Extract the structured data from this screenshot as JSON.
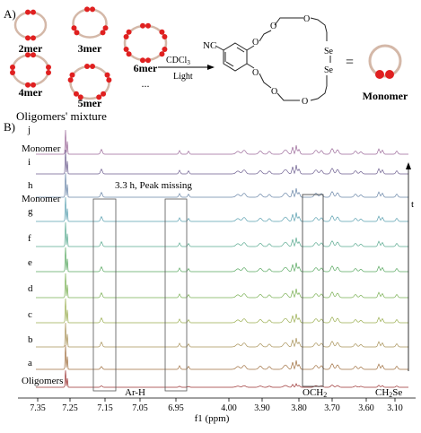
{
  "panel_a": {
    "label": "A)",
    "oligomers": [
      {
        "label": "2mer",
        "beads": 2
      },
      {
        "label": "3mer",
        "beads": 3
      },
      {
        "label": "6mer",
        "beads": 6
      },
      {
        "label": "4mer",
        "beads": 4
      },
      {
        "label": "5mer",
        "beads": 5
      },
      {
        "label": "...",
        "beads": 0
      }
    ],
    "mixture_label": "Oligomers' mixture",
    "arrow_top": "CDCl",
    "arrow_top_sub": "3",
    "arrow_bottom": "Light",
    "structure": {
      "nitrile": "NC",
      "oxygen": "O",
      "selenium": "Se"
    },
    "equals": "=",
    "monomer_label": "Monomer",
    "colors": {
      "ring": "#d4b8a8",
      "bead": "#e02020",
      "bond": "#222222"
    }
  },
  "panel_b": {
    "label": "B)",
    "trace_labels": [
      "j",
      "i",
      "h",
      "g",
      "f",
      "e",
      "d",
      "c",
      "b",
      "a"
    ],
    "oligomers_label": "Oligomers",
    "monomer_labels": [
      "Monomer",
      "Monomer"
    ],
    "annotation": "3.3 h, Peak missing",
    "time_axis_label": "t",
    "region_labels": {
      "ar_h": "Ar-H",
      "och2": "OCH",
      "och2_sub": "2",
      "ch2se": "CH",
      "ch2se_sub": "2",
      "ch2se_tail": "Se"
    },
    "axis_ticks": [
      "7.35",
      "7.25",
      "7.15",
      "7.05",
      "6.95",
      "4.00",
      "3.90",
      "3.80",
      "3.70",
      "3.60",
      "3.10"
    ],
    "axis_label": "f1 (ppm)",
    "trace_colors": [
      "#9c6a9a",
      "#6e5f90",
      "#6a86a8",
      "#5aa0b0",
      "#5aaa90",
      "#58a860",
      "#7ab054",
      "#9aae50",
      "#a89258",
      "#a07040",
      "#9a3030"
    ]
  }
}
